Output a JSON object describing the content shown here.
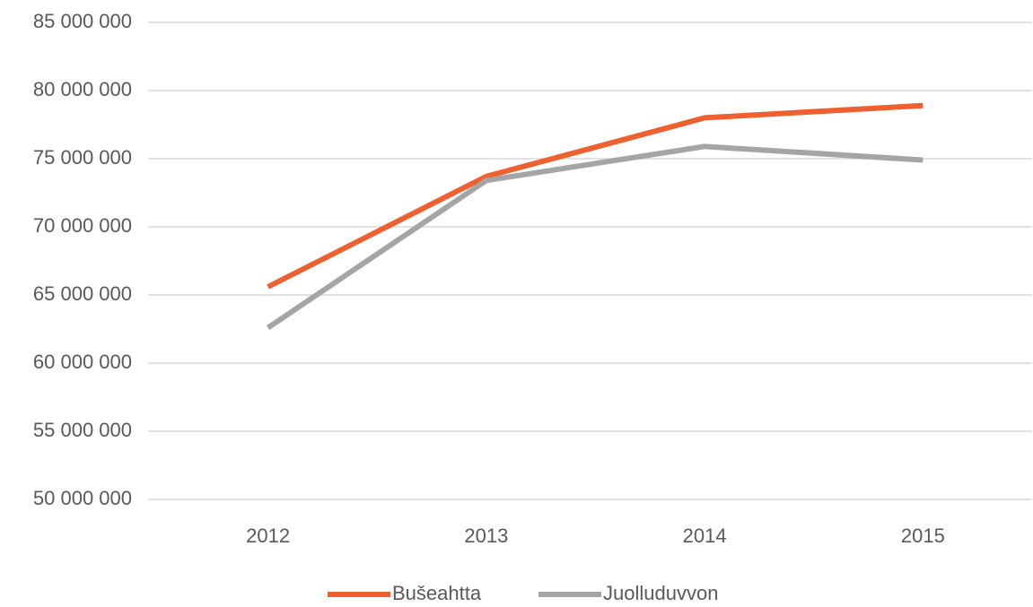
{
  "chart_data": {
    "type": "line",
    "categories": [
      "2012",
      "2013",
      "2014",
      "2015"
    ],
    "series": [
      {
        "name": "Bušeahtta",
        "color": "#ee6030",
        "values": [
          65600000,
          73700000,
          78000000,
          78900000
        ]
      },
      {
        "name": "Juolluduvvon",
        "color": "#a5a5a5",
        "values": [
          62600000,
          73400000,
          75900000,
          74900000
        ]
      }
    ],
    "ylim": [
      50000000,
      85000000
    ],
    "yticks": [
      {
        "value": 50000000,
        "label": "50 000 000"
      },
      {
        "value": 55000000,
        "label": "55 000 000"
      },
      {
        "value": 60000000,
        "label": "60 000 000"
      },
      {
        "value": 65000000,
        "label": "65 000 000"
      },
      {
        "value": 70000000,
        "label": "70 000 000"
      },
      {
        "value": 75000000,
        "label": "75 000 000"
      },
      {
        "value": 80000000,
        "label": "80 000 000"
      },
      {
        "value": 85000000,
        "label": "85 000 000"
      }
    ],
    "grid": true,
    "legend": "bottom"
  }
}
